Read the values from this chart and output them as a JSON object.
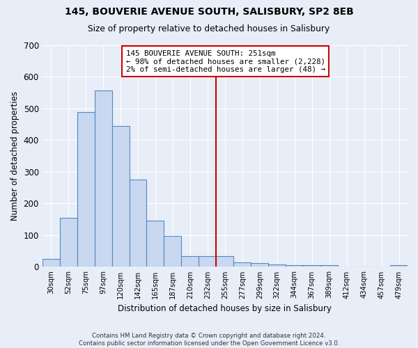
{
  "title1": "145, BOUVERIE AVENUE SOUTH, SALISBURY, SP2 8EB",
  "title2": "Size of property relative to detached houses in Salisbury",
  "xlabel": "Distribution of detached houses by size in Salisbury",
  "ylabel": "Number of detached properties",
  "bar_labels": [
    "30sqm",
    "52sqm",
    "75sqm",
    "97sqm",
    "120sqm",
    "142sqm",
    "165sqm",
    "187sqm",
    "210sqm",
    "232sqm",
    "255sqm",
    "277sqm",
    "299sqm",
    "322sqm",
    "344sqm",
    "367sqm",
    "389sqm",
    "412sqm",
    "434sqm",
    "457sqm",
    "479sqm"
  ],
  "bar_values": [
    25,
    155,
    490,
    558,
    445,
    275,
    145,
    97,
    35,
    35,
    35,
    15,
    12,
    8,
    6,
    5,
    5,
    0,
    0,
    0,
    6
  ],
  "bar_color": "#c8d8f0",
  "bar_edge_color": "#5588bb",
  "vline_color": "#cc0000",
  "annotation_line1": "145 BOUVERIE AVENUE SOUTH: 251sqm",
  "annotation_line2": "← 98% of detached houses are smaller (2,228)",
  "annotation_line3": "2% of semi-detached houses are larger (48) →",
  "annotation_box_color": "white",
  "annotation_box_edge": "#cc0000",
  "ylim": [
    0,
    700
  ],
  "yticks": [
    0,
    100,
    200,
    300,
    400,
    500,
    600,
    700
  ],
  "bg_color": "#e8eef8",
  "grid_color": "#ffffff",
  "footer_line1": "Contains HM Land Registry data © Crown copyright and database right 2024.",
  "footer_line2": "Contains public sector information licensed under the Open Government Licence v3.0."
}
